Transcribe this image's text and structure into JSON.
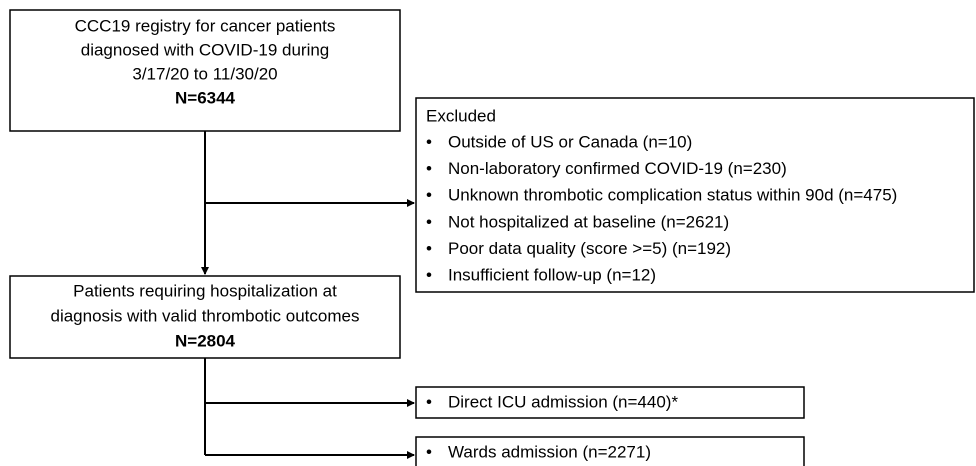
{
  "registry": {
    "lines": [
      "CCC19 registry for cancer patients",
      "diagnosed with COVID-19 during",
      "3/17/20 to 11/30/20"
    ],
    "count": "N=6344"
  },
  "excluded": {
    "title": "Excluded",
    "items": [
      "Outside of US or Canada (n=10)",
      "Non-laboratory confirmed COVID-19 (n=230)",
      "Unknown thrombotic complication status within 90d (n=475)",
      "Not hospitalized at baseline (n=2621)",
      "Poor data quality (score >=5) (n=192)",
      "Insufficient follow-up (n=12)"
    ]
  },
  "hospitalized": {
    "lines": [
      "Patients requiring hospitalization at",
      "diagnosis with valid thrombotic outcomes"
    ],
    "count": "N=2804"
  },
  "icu": {
    "items": [
      "Direct ICU admission (n=440)*"
    ]
  },
  "wards": {
    "items": [
      "Wards admission (n=2271)"
    ]
  }
}
